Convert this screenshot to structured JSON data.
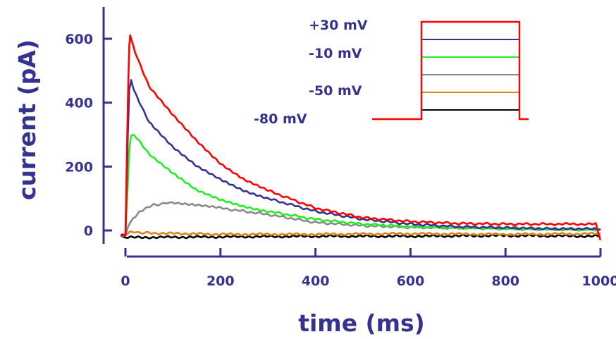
{
  "chart_data": {
    "type": "line",
    "title": "",
    "xlabel": "time (ms)",
    "ylabel": "current (pA)",
    "xlim": [
      -10,
      1005
    ],
    "ylim": [
      -50,
      700
    ],
    "xticks": [
      0,
      200,
      400,
      600,
      800,
      1000
    ],
    "xtick_labels": [
      "0",
      "200",
      "400",
      "600",
      "800",
      "1000"
    ],
    "yticks": [
      0,
      200,
      400,
      600
    ],
    "ytick_labels": [
      "0",
      "200",
      "400",
      "600"
    ],
    "grid": false,
    "series": [
      {
        "color": "#000000",
        "x": [
          -10,
          0,
          200,
          400,
          600,
          800,
          1000
        ],
        "y": [
          -20,
          -22,
          -20,
          -18,
          -18,
          -16,
          -18
        ]
      },
      {
        "color": "#e0801f",
        "x": [
          -10,
          0,
          5,
          10,
          50,
          200,
          400,
          600,
          800,
          1000
        ],
        "y": [
          -15,
          -15,
          -8,
          -5,
          -8,
          -12,
          -12,
          -10,
          -12,
          -10
        ]
      },
      {
        "color": "#8a8a8a",
        "x": [
          -10,
          0,
          5,
          10,
          30,
          60,
          100,
          150,
          200,
          300,
          400,
          500,
          600,
          700,
          800,
          900,
          1000
        ],
        "y": [
          -15,
          -15,
          10,
          25,
          60,
          80,
          88,
          80,
          70,
          50,
          25,
          15,
          10,
          8,
          10,
          5,
          5
        ]
      },
      {
        "color": "#22ee22",
        "x": [
          -10,
          0,
          5,
          8,
          12,
          20,
          50,
          100,
          150,
          200,
          250,
          300,
          400,
          500,
          600,
          700,
          800,
          900,
          1000
        ],
        "y": [
          -15,
          -15,
          150,
          250,
          300,
          295,
          240,
          180,
          125,
          95,
          75,
          60,
          35,
          20,
          12,
          8,
          5,
          3,
          2
        ]
      },
      {
        "color": "#35338f",
        "x": [
          -10,
          0,
          5,
          8,
          12,
          20,
          50,
          100,
          150,
          200,
          250,
          300,
          400,
          500,
          600,
          700,
          800,
          900,
          1000
        ],
        "y": [
          -15,
          -15,
          300,
          440,
          470,
          430,
          340,
          260,
          200,
          160,
          125,
          100,
          60,
          35,
          20,
          12,
          8,
          5,
          5
        ]
      },
      {
        "color": "#ff0000",
        "x": [
          -10,
          0,
          5,
          8,
          10,
          20,
          50,
          100,
          150,
          200,
          250,
          300,
          400,
          500,
          600,
          700,
          800,
          900,
          990,
          998,
          1000
        ],
        "y": [
          -15,
          -15,
          400,
          580,
          610,
          560,
          450,
          360,
          280,
          210,
          160,
          125,
          70,
          40,
          28,
          22,
          20,
          20,
          20,
          -20,
          -30
        ]
      }
    ],
    "inset": {
      "labels": [
        "+30 mV",
        "-10 mV",
        "-50 mV",
        "-80 mV"
      ],
      "step_levels": [
        {
          "color": "#ff0000"
        },
        {
          "color": "#35338f"
        },
        {
          "color": "#22ee22"
        },
        {
          "color": "#8a8a8a"
        },
        {
          "color": "#e0801f"
        },
        {
          "color": "#000000"
        }
      ]
    }
  }
}
